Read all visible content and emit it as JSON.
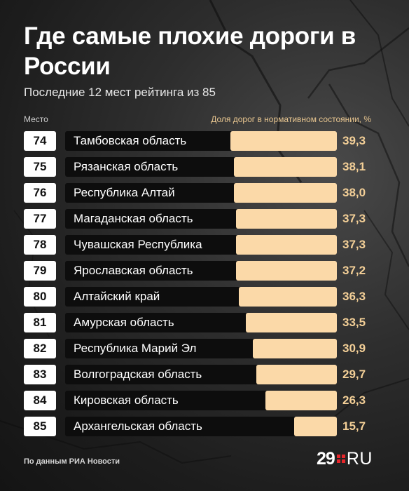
{
  "title": "Где самые плохие дороги в России",
  "subtitle": "Последние 12 мест рейтинга из 85",
  "rank_header": "Место",
  "value_header": "Доля дорог в нормативном состоянии, %",
  "source": "По данным РИА Новости",
  "logo": {
    "number": "29",
    "suffix": "RU",
    "accent_color": "#e8252a"
  },
  "colors": {
    "bar": "#fbd9a8",
    "value_text": "#f3cf97",
    "row_bg": "#0d0d0d",
    "background": "#262626"
  },
  "chart_data": {
    "type": "bar",
    "orientation": "horizontal",
    "title": "Где самые плохие дороги в России",
    "subtitle": "Последние 12 мест рейтинга из 85",
    "xlabel": "Доля дорог в нормативном состоянии, %",
    "ylabel": "Место",
    "xlim": [
      0,
      39.3
    ],
    "grid": false,
    "decimal_separator": ",",
    "ranks": [
      "74",
      "75",
      "76",
      "77",
      "78",
      "79",
      "80",
      "81",
      "82",
      "83",
      "84",
      "85"
    ],
    "categories": [
      "Тамбовская область",
      "Рязанская область",
      "Республика Алтай",
      "Магаданская область",
      "Чувашская Республика",
      "Ярославская область",
      "Алтайский край",
      "Амурская область",
      "Республика Марий Эл",
      "Волгоградская область",
      "Кировская область",
      "Архангельская область"
    ],
    "values": [
      39.3,
      38.1,
      38.0,
      37.3,
      37.3,
      37.2,
      36.3,
      33.5,
      30.9,
      29.7,
      26.3,
      15.7
    ]
  }
}
